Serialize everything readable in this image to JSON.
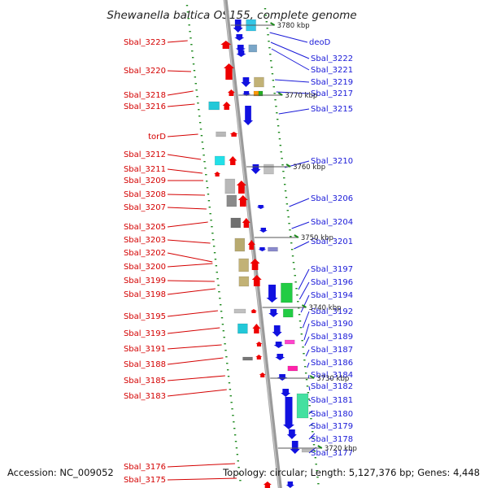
{
  "title": "Shewanella baltica OS155, complete genome",
  "footer": {
    "accession": "Accession: NC_009052",
    "topology": "Topology: circular; Length: 5,127,376 bp; Genes: 4,448"
  },
  "colors": {
    "backbone": "#8c8c8c",
    "left_label": "#d40000",
    "right_label": "#1a1ad8",
    "forward_strand": "#ee0000",
    "reverse_strand": "#1111e0",
    "tick": "#1f8a1f"
  },
  "kbp_marks": [
    "3780 kbp",
    "3770 kbp",
    "3760 kbp",
    "3750 kbp",
    "3740 kbp",
    "3730 kbp",
    "3720 kbp"
  ],
  "left_genes": [
    "Sbal_3223",
    "Sbal_3220",
    "Sbal_3218",
    "Sbal_3216",
    "torD",
    "Sbal_3212",
    "Sbal_3211",
    "Sbal_3209",
    "Sbal_3208",
    "Sbal_3207",
    "Sbal_3205",
    "Sbal_3203",
    "Sbal_3202",
    "Sbal_3200",
    "Sbal_3199",
    "Sbal_3198",
    "Sbal_3195",
    "Sbal_3193",
    "Sbal_3191",
    "Sbal_3188",
    "Sbal_3185",
    "Sbal_3183",
    "Sbal_3176",
    "Sbal_3175"
  ],
  "right_genes": [
    "deoD",
    "Sbal_3222",
    "Sbal_3221",
    "Sbal_3219",
    "Sbal_3217",
    "Sbal_3215",
    "Sbal_3210",
    "Sbal_3206",
    "Sbal_3204",
    "Sbal_3201",
    "Sbal_3197",
    "Sbal_3196",
    "Sbal_3194",
    "Sbal_3192",
    "Sbal_3190",
    "Sbal_3189",
    "Sbal_3187",
    "Sbal_3186",
    "Sbal_3184",
    "Sbal_3182",
    "Sbal_3181",
    "Sbal_3180",
    "Sbal_3179",
    "Sbal_3178",
    "Sbal_3177"
  ]
}
